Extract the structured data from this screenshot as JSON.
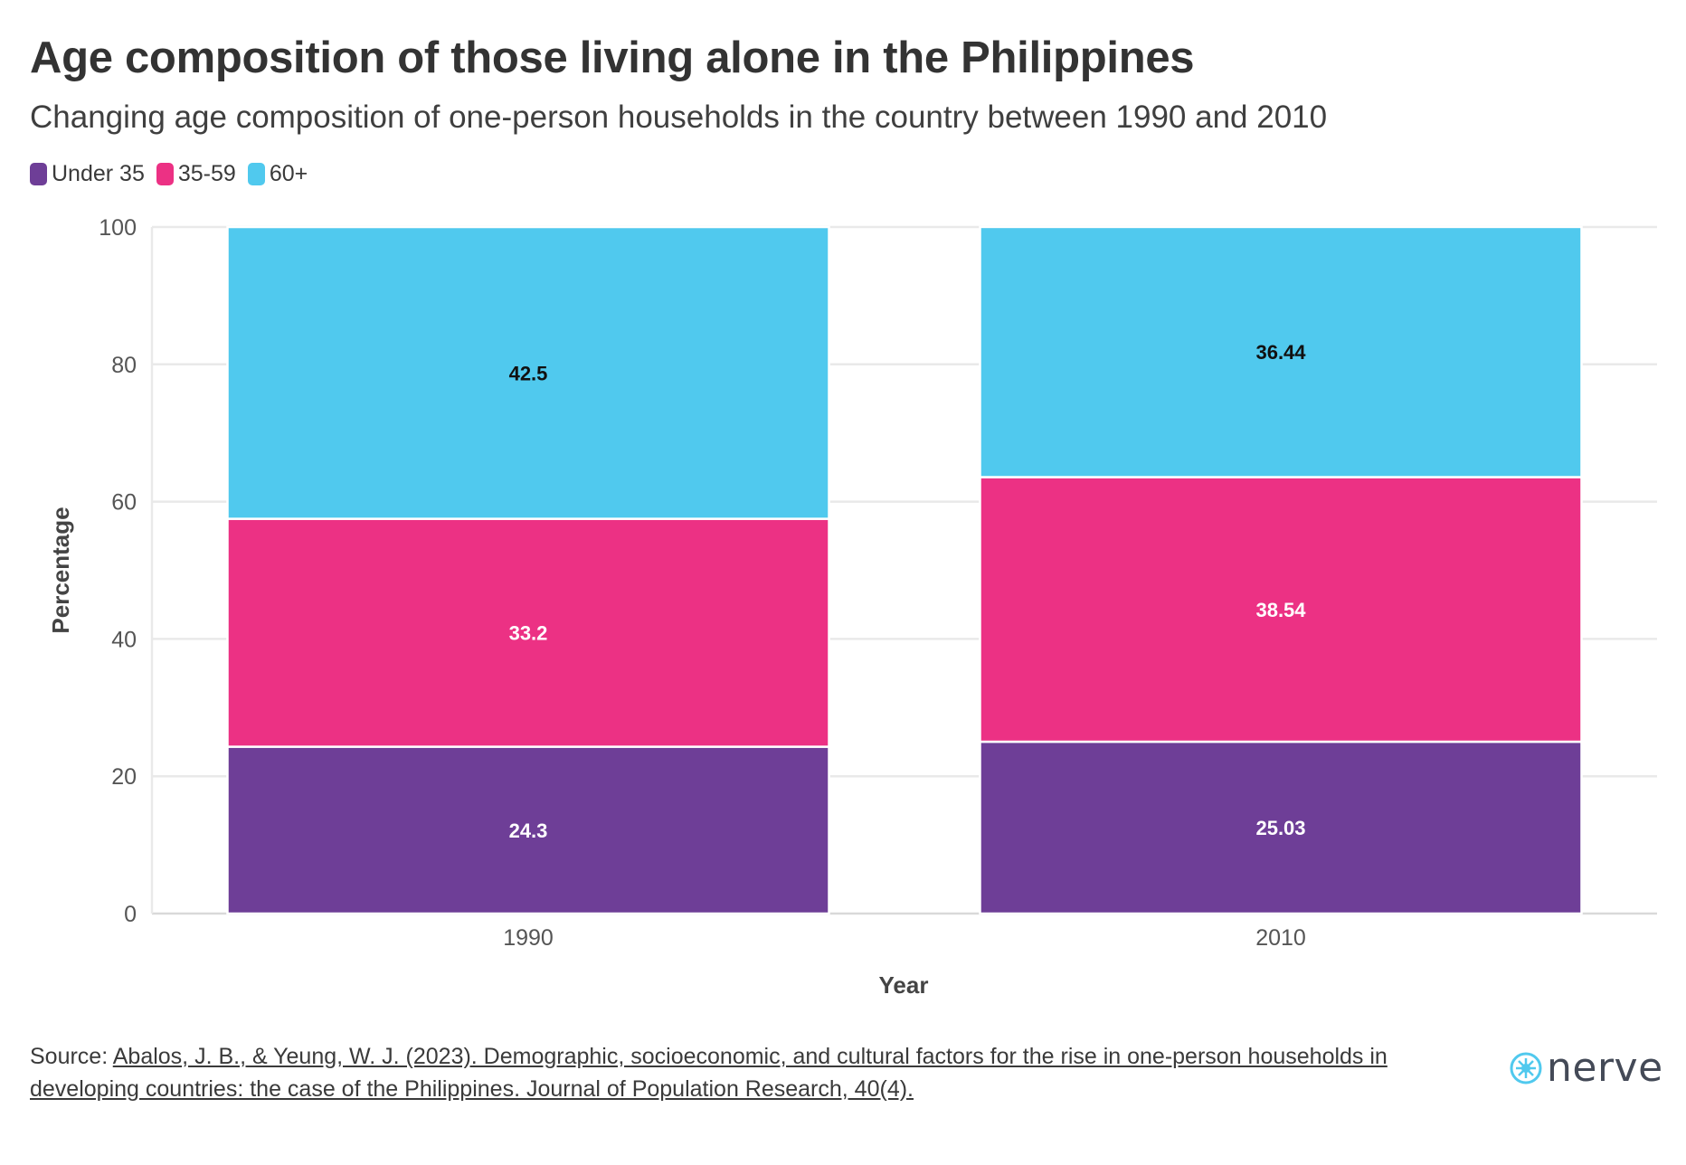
{
  "title": "Age composition of those living alone in the Philippines",
  "subtitle": "Changing age composition of one-person households in the country between 1990 and 2010",
  "colors": {
    "under35": "#6e3e97",
    "mid": "#ec3184",
    "senior": "#50c9ee"
  },
  "chart_data": {
    "type": "bar",
    "stacked": true,
    "categories": [
      "1990",
      "2010"
    ],
    "series": [
      {
        "name": "Under 35",
        "values": [
          24.3,
          25.03
        ],
        "labels": [
          "24.3",
          "25.03"
        ],
        "color": "#6e3e97",
        "label_color": "#ffffff"
      },
      {
        "name": "35-59",
        "values": [
          33.2,
          38.54
        ],
        "labels": [
          "33.2",
          "38.54"
        ],
        "color": "#ec3184",
        "label_color": "#ffffff"
      },
      {
        "name": "60+",
        "values": [
          42.5,
          36.44
        ],
        "labels": [
          "42.5",
          "36.44"
        ],
        "color": "#50c9ee",
        "label_color": "#111111"
      }
    ],
    "xlabel": "Year",
    "ylabel": "Percentage",
    "ylim": [
      0,
      100
    ],
    "yticks": [
      "0",
      "20",
      "40",
      "60",
      "80",
      "100"
    ],
    "grid": true,
    "legend": "top-left"
  },
  "footer": {
    "source_prefix": "Source: ",
    "source_line1": "Abalos, J. B., & Yeung, W. J. (2023). Demographic, socioeconomic, and cultural factors for the rise in one-person households in",
    "source_line2": "developing countries: the case of the Philippines. Journal of Population Research, 40(4)."
  },
  "brand": {
    "name": "nerve",
    "icon": "nerve-logo-icon"
  }
}
